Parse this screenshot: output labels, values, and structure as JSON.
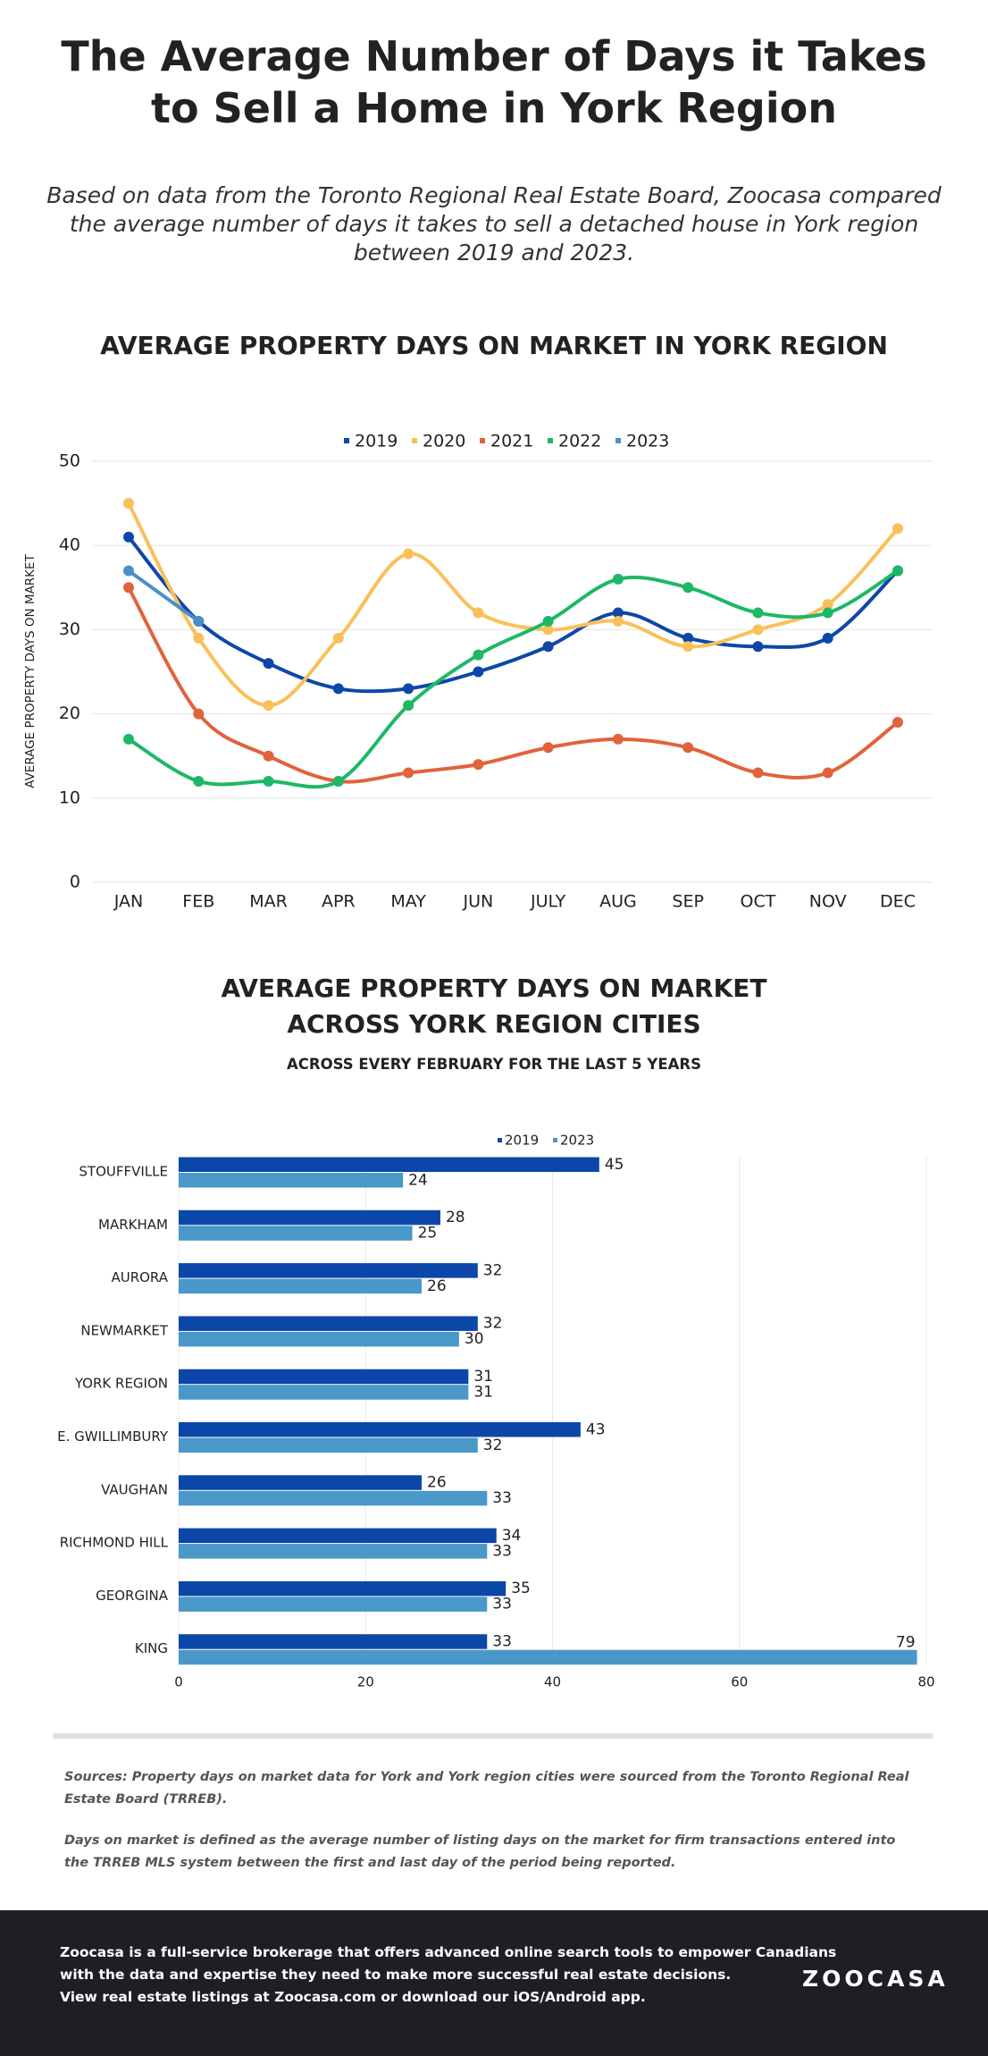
{
  "header": {
    "title": [
      "The Average Number of Days it Takes",
      "to Sell a Home in York Region"
    ],
    "subtitle": [
      "Based on data from the Toronto Regional Real Estate Board, Zoocasa compared",
      "the average number of days it takes to sell a detached house in York region",
      "between 2019 and 2023."
    ]
  },
  "chart_data": [
    {
      "type": "line",
      "title": "AVERAGE PROPERTY DAYS ON MARKET IN YORK REGION",
      "y_label": "AVERAGE PROPERTY DAYS ON MARKET",
      "categories": [
        "JAN",
        "FEB",
        "MAR",
        "APR",
        "MAY",
        "JUN",
        "JULY",
        "AUG",
        "SEP",
        "OCT",
        "NOV",
        "DEC"
      ],
      "series": [
        {
          "name": "2019",
          "color": "#0d47a8",
          "values": [
            41,
            31,
            26,
            23,
            23,
            25,
            28,
            32,
            29,
            28,
            29,
            37
          ]
        },
        {
          "name": "2020",
          "color": "#f9c05a",
          "values": [
            45,
            29,
            21,
            29,
            39,
            32,
            30,
            31,
            28,
            30,
            33,
            42
          ]
        },
        {
          "name": "2021",
          "color": "#e0633c",
          "values": [
            35,
            20,
            15,
            12,
            13,
            14,
            16,
            17,
            16,
            13,
            13,
            19
          ]
        },
        {
          "name": "2022",
          "color": "#1db866",
          "values": [
            17,
            12,
            12,
            12,
            21,
            27,
            31,
            36,
            35,
            32,
            32,
            37
          ]
        },
        {
          "name": "2023",
          "color": "#4a90c8",
          "values": [
            37,
            31,
            null,
            null,
            null,
            null,
            null,
            null,
            null,
            null,
            null,
            null
          ]
        }
      ],
      "ylim": [
        0,
        50
      ],
      "yticks": [
        0,
        10,
        20,
        30,
        40,
        50
      ],
      "grid": true,
      "legend": "top"
    },
    {
      "type": "barh",
      "title": "AVERAGE PROPERTY DAYS ON MARKET ACROSS YORK REGION CITIES",
      "subtitle": "ACROSS EVERY FEBRUARY FOR THE LAST 5 YEARS",
      "categories": [
        "STOUFFVILLE",
        "MARKHAM",
        "AURORA",
        "NEWMARKET",
        "YORK REGION",
        "E. GWILLIMBURY",
        "VAUGHAN",
        "RICHMOND HILL",
        "GEORGINA",
        "KING"
      ],
      "series": [
        {
          "name": "2019",
          "color": "#0b47a8",
          "values": [
            45,
            28,
            32,
            32,
            31,
            43,
            26,
            34,
            35,
            33
          ]
        },
        {
          "name": "2023",
          "color": "#4a97c9",
          "values": [
            24,
            25,
            26,
            30,
            31,
            32,
            33,
            33,
            33,
            79
          ]
        }
      ],
      "xlim": [
        0,
        80
      ],
      "xticks": [
        0,
        20,
        40,
        60,
        80
      ],
      "grid": true,
      "legend": "top"
    }
  ],
  "notes": [
    "Sources: Property days on market data for York and York region cities were sourced from the Toronto Regional Real Estate Board (TRREB).",
    "Days on market is defined as the average number of listing days on the market for firm transactions entered into the TRREB MLS system between the first and last day of the period being reported."
  ],
  "footer": {
    "lines": [
      "Zoocasa is a full-service brokerage that offers advanced online search tools to empower Canadians",
      "with the data and expertise they need to make more successful real estate decisions.",
      "View real estate listings at Zoocasa.com or download our iOS/Android app."
    ],
    "logo": "ZOOCASA"
  }
}
